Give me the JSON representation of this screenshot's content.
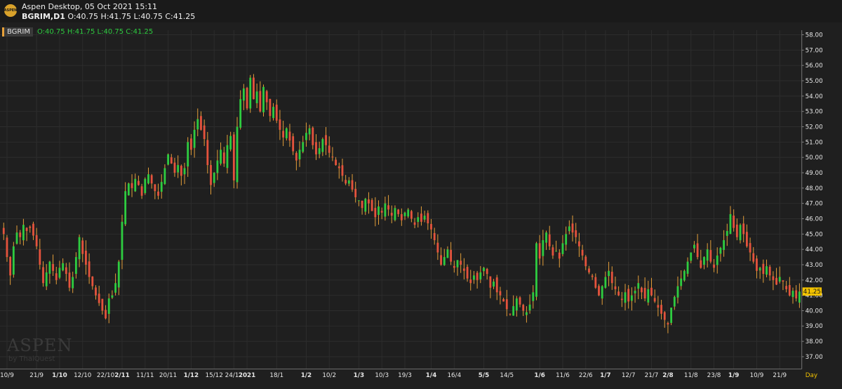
{
  "window": {
    "title": "Aspen Desktop, 05 Oct 2021 15:11",
    "symbol_line_symbol": "BGRIM,D1",
    "symbol_line_values": "O:40.75 H:41.75 L:40.75 C:41.25"
  },
  "logo_text": "ASPEN",
  "legend": {
    "symbol": "BGRIM",
    "values": "O:40.75  H:41.75  L:40.75  C:41.25"
  },
  "watermark": {
    "line1": "ASPEN",
    "line2": "by ThaiQuest"
  },
  "colors": {
    "up": "#2ecc40",
    "down": "#e5533d",
    "wick": "#e8a13a",
    "price_tag": "#f2c200",
    "grid": "#2d2d2d",
    "axis_text": "#e6e6e6"
  },
  "chart_data": {
    "type": "candlestick",
    "ylim": [
      36.2,
      58.3
    ],
    "y_ticks": [
      "37.00",
      "38.00",
      "39.00",
      "40.00",
      "41.00",
      "42.00",
      "43.00",
      "44.00",
      "45.00",
      "46.00",
      "47.00",
      "48.00",
      "49.00",
      "50.00",
      "51.00",
      "52.00",
      "53.00",
      "54.00",
      "55.00",
      "56.00",
      "57.00",
      "58.00"
    ],
    "last_price": "41.25",
    "x_period_label": "Day",
    "x_ticks": [
      {
        "label": "10/9",
        "bold": false,
        "i": 1
      },
      {
        "label": "21/9",
        "bold": false,
        "i": 10
      },
      {
        "label": "1/10",
        "bold": true,
        "i": 17
      },
      {
        "label": "12/10",
        "bold": false,
        "i": 24
      },
      {
        "label": "22/10",
        "bold": false,
        "i": 31
      },
      {
        "label": "2/11",
        "bold": true,
        "i": 36
      },
      {
        "label": "11/11",
        "bold": false,
        "i": 43
      },
      {
        "label": "20/11",
        "bold": false,
        "i": 50
      },
      {
        "label": "1/12",
        "bold": true,
        "i": 57
      },
      {
        "label": "15/12",
        "bold": false,
        "i": 64
      },
      {
        "label": "24/12",
        "bold": false,
        "i": 70
      },
      {
        "label": "2021",
        "bold": true,
        "i": 74
      },
      {
        "label": "18/1",
        "bold": false,
        "i": 83
      },
      {
        "label": "1/2",
        "bold": true,
        "i": 92
      },
      {
        "label": "10/2",
        "bold": false,
        "i": 99
      },
      {
        "label": "1/3",
        "bold": true,
        "i": 108
      },
      {
        "label": "10/3",
        "bold": false,
        "i": 115
      },
      {
        "label": "19/3",
        "bold": false,
        "i": 122
      },
      {
        "label": "1/4",
        "bold": true,
        "i": 130
      },
      {
        "label": "16/4",
        "bold": false,
        "i": 137
      },
      {
        "label": "5/5",
        "bold": true,
        "i": 146
      },
      {
        "label": "14/5",
        "bold": false,
        "i": 153
      },
      {
        "label": "1/6",
        "bold": true,
        "i": 163
      },
      {
        "label": "11/6",
        "bold": false,
        "i": 170
      },
      {
        "label": "22/6",
        "bold": false,
        "i": 177
      },
      {
        "label": "1/7",
        "bold": true,
        "i": 183
      },
      {
        "label": "12/7",
        "bold": false,
        "i": 190
      },
      {
        "label": "21/7",
        "bold": false,
        "i": 197
      },
      {
        "label": "2/8",
        "bold": true,
        "i": 202
      },
      {
        "label": "11/8",
        "bold": false,
        "i": 209
      },
      {
        "label": "23/8",
        "bold": false,
        "i": 216
      },
      {
        "label": "1/9",
        "bold": true,
        "i": 222
      },
      {
        "label": "10/9",
        "bold": false,
        "i": 229
      },
      {
        "label": "21/9",
        "bold": false,
        "i": 236
      }
    ],
    "close_path": [
      45.0,
      43.5,
      42.3,
      44.2,
      45.1,
      44.8,
      45.6,
      45.2,
      45.4,
      44.9,
      44.2,
      43.0,
      41.8,
      42.5,
      43.2,
      42.6,
      42.0,
      42.8,
      43.1,
      42.4,
      41.5,
      42.2,
      43.5,
      44.8,
      43.7,
      43.0,
      42.2,
      41.6,
      41.0,
      40.5,
      40.0,
      39.5,
      40.8,
      41.0,
      41.8,
      43.2,
      45.8,
      47.8,
      48.3,
      48.0,
      48.6,
      48.2,
      47.5,
      48.6,
      48.9,
      48.3,
      47.8,
      47.5,
      48.4,
      49.3,
      50.2,
      49.6,
      49.0,
      49.5,
      48.8,
      49.3,
      51.0,
      50.5,
      51.8,
      52.5,
      51.8,
      51.2,
      49.5,
      48.2,
      49.0,
      49.8,
      50.5,
      49.6,
      50.8,
      51.4,
      48.5,
      52.0,
      53.8,
      54.5,
      53.2,
      55.2,
      53.8,
      54.3,
      53.0,
      54.6,
      53.6,
      52.7,
      53.3,
      52.4,
      51.8,
      51.3,
      51.9,
      51.1,
      50.4,
      49.8,
      50.5,
      51.0,
      51.6,
      51.9,
      50.8,
      50.2,
      50.6,
      51.2,
      50.8,
      50.3,
      50.0,
      49.5,
      49.3,
      48.8,
      48.3,
      48.5,
      47.9,
      47.4,
      47.2,
      46.7,
      47.3,
      47.0,
      46.5,
      46.1,
      46.8,
      46.4,
      47.0,
      46.6,
      46.2,
      46.7,
      46.3,
      45.9,
      46.4,
      46.6,
      46.0,
      45.6,
      46.1,
      45.8,
      46.2,
      45.7,
      45.3,
      44.6,
      43.8,
      43.0,
      43.5,
      44.0,
      43.2,
      42.8,
      43.3,
      43.0,
      42.6,
      42.1,
      41.8,
      42.3,
      42.0,
      42.5,
      42.8,
      42.4,
      41.5,
      41.9,
      41.2,
      41.0,
      40.6,
      40.1,
      39.8,
      40.3,
      40.8,
      40.4,
      40.0,
      39.9,
      40.4,
      41.2,
      44.4,
      43.4,
      44.6,
      45.1,
      44.2,
      43.6,
      43.9,
      43.4,
      44.4,
      45.0,
      45.5,
      45.1,
      44.8,
      44.2,
      43.6,
      42.9,
      42.5,
      42.2,
      41.5,
      41.0,
      41.6,
      42.2,
      42.6,
      41.8,
      41.4,
      41.0,
      40.7,
      41.2,
      40.6,
      41.0,
      41.3,
      41.8,
      41.2,
      40.8,
      41.4,
      41.0,
      40.6,
      40.2,
      39.8,
      39.4,
      39.1,
      40.2,
      40.9,
      41.6,
      42.1,
      42.6,
      43.2,
      43.8,
      44.3,
      43.5,
      42.8,
      43.5,
      44.0,
      43.2,
      42.8,
      43.6,
      44.1,
      44.6,
      45.2,
      46.3,
      45.4,
      44.8,
      45.6,
      45.0,
      44.2,
      43.8,
      43.2,
      42.6,
      42.8,
      42.4,
      42.9,
      42.3,
      42.0,
      41.7,
      42.2,
      41.9,
      41.4,
      41.0,
      41.3,
      40.8,
      41.25
    ]
  }
}
